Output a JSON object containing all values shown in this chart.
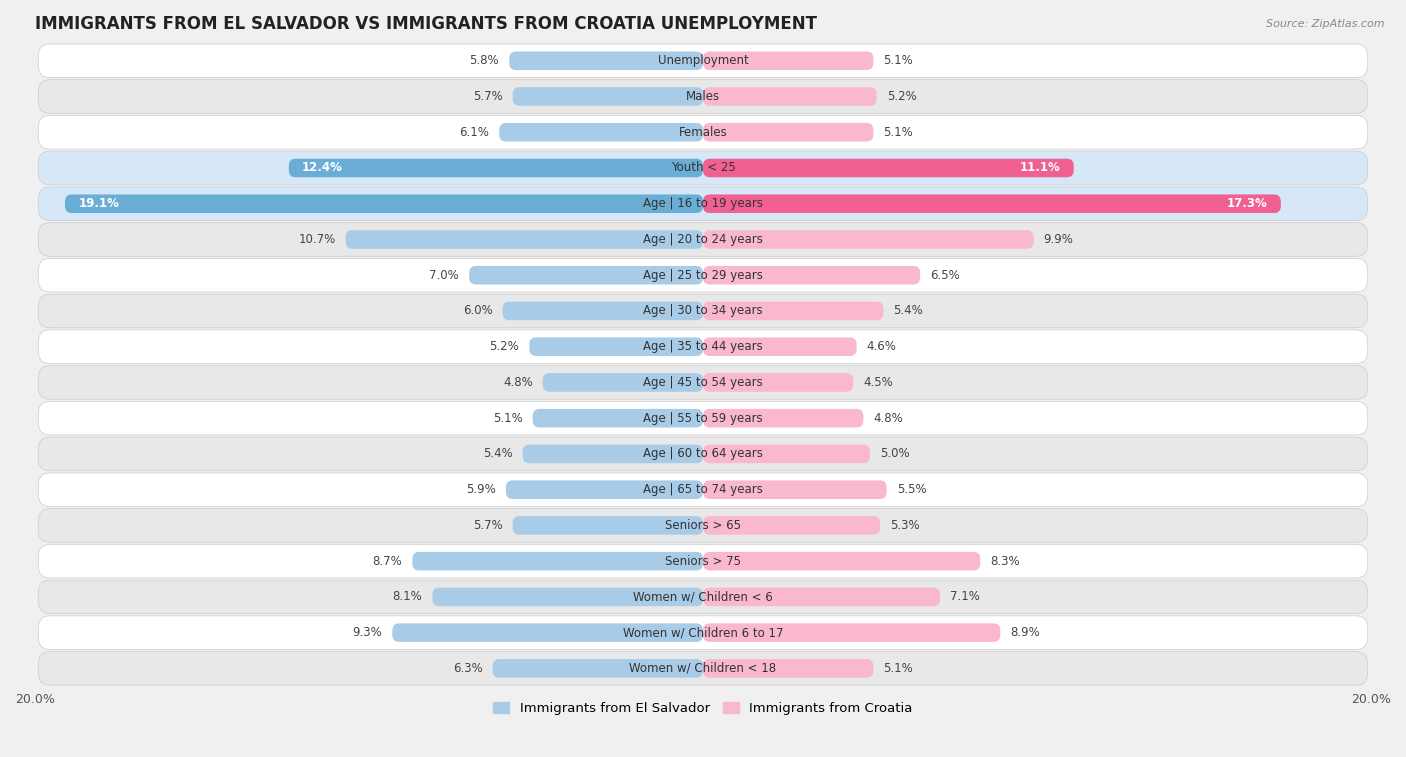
{
  "title": "IMMIGRANTS FROM EL SALVADOR VS IMMIGRANTS FROM CROATIA UNEMPLOYMENT",
  "source": "Source: ZipAtlas.com",
  "categories": [
    "Unemployment",
    "Males",
    "Females",
    "Youth < 25",
    "Age | 16 to 19 years",
    "Age | 20 to 24 years",
    "Age | 25 to 29 years",
    "Age | 30 to 34 years",
    "Age | 35 to 44 years",
    "Age | 45 to 54 years",
    "Age | 55 to 59 years",
    "Age | 60 to 64 years",
    "Age | 65 to 74 years",
    "Seniors > 65",
    "Seniors > 75",
    "Women w/ Children < 6",
    "Women w/ Children 6 to 17",
    "Women w/ Children < 18"
  ],
  "left_values": [
    5.8,
    5.7,
    6.1,
    12.4,
    19.1,
    10.7,
    7.0,
    6.0,
    5.2,
    4.8,
    5.1,
    5.4,
    5.9,
    5.7,
    8.7,
    8.1,
    9.3,
    6.3
  ],
  "right_values": [
    5.1,
    5.2,
    5.1,
    11.1,
    17.3,
    9.9,
    6.5,
    5.4,
    4.6,
    4.5,
    4.8,
    5.0,
    5.5,
    5.3,
    8.3,
    7.1,
    8.9,
    5.1
  ],
  "left_color_normal": "#a8cce8",
  "left_color_highlight": "#6aaed6",
  "right_color_normal": "#f9b8cc",
  "right_color_highlight": "#f06090",
  "left_label": "Immigrants from El Salvador",
  "right_label": "Immigrants from Croatia",
  "xlim": 20.0,
  "bg_outer": "#f0f0f0",
  "row_bg_even": "#ffffff",
  "row_bg_odd": "#e8e8e8",
  "highlight_rows": [
    3,
    4
  ],
  "highlight_bg": "#d6e8f7"
}
